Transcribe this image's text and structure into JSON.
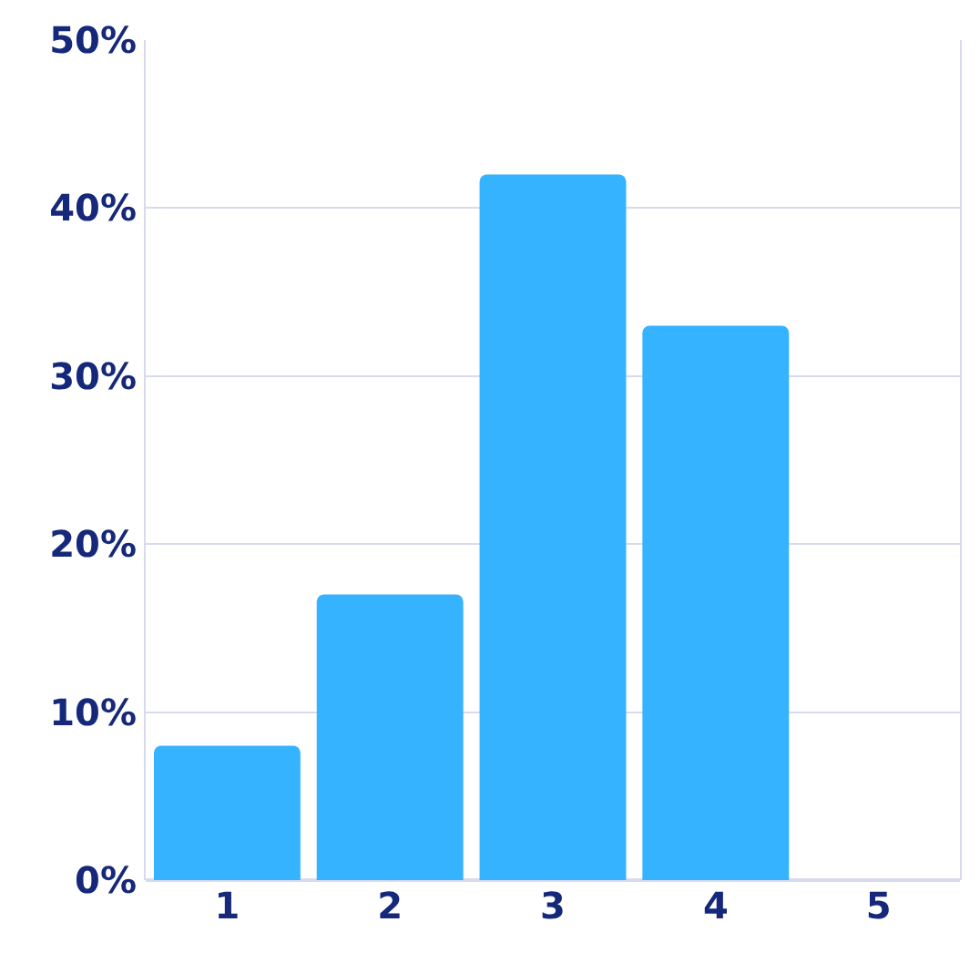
{
  "chart_data": {
    "type": "bar",
    "categories": [
      "1",
      "2",
      "3",
      "4",
      "5"
    ],
    "series": [
      {
        "color": "#36b3ff",
        "values": [
          8,
          17,
          42,
          33,
          0
        ]
      }
    ],
    "ylim": [
      0,
      50
    ],
    "yticks": [
      {
        "value": 0,
        "label": "0%"
      },
      {
        "value": 10,
        "label": "10%"
      },
      {
        "value": 20,
        "label": "20%"
      },
      {
        "value": 30,
        "label": "30%"
      },
      {
        "value": 40,
        "label": "40%"
      },
      {
        "value": 50,
        "label": "50%"
      }
    ],
    "grid": "y"
  }
}
